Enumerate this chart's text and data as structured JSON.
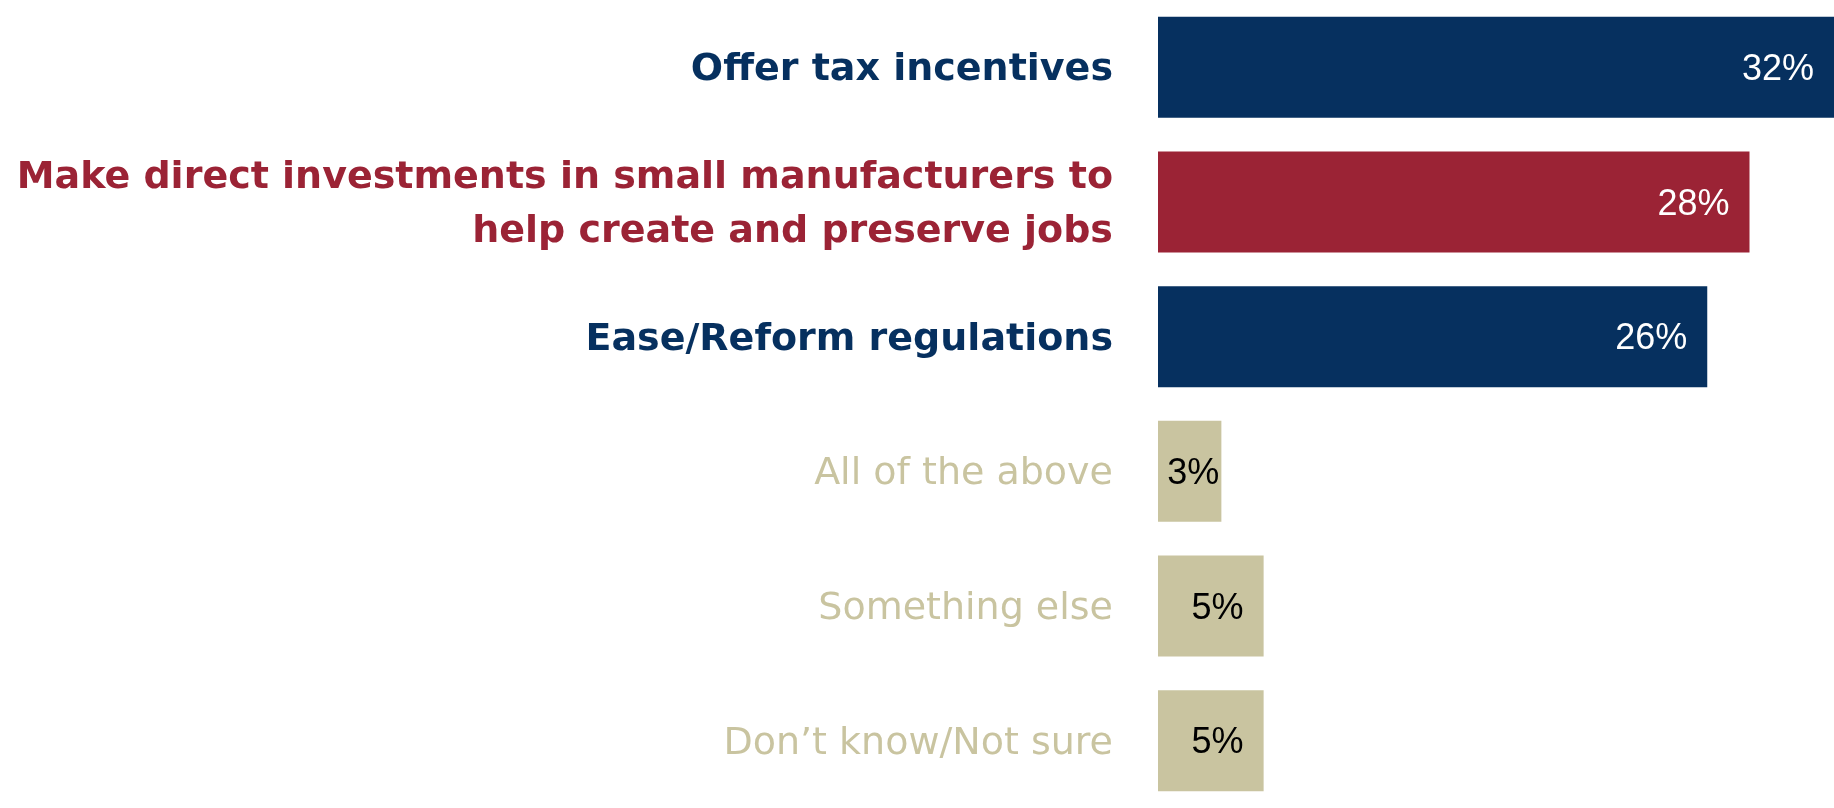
{
  "chart_data": {
    "type": "bar",
    "orientation": "horizontal",
    "categories": [
      "Offer tax incentives",
      "Make direct investments in small manufacturers to help create and preserve jobs",
      "Ease/Reform regulations",
      "All of the above",
      "Something else",
      "Don’t know/Not sure"
    ],
    "values": [
      32,
      28,
      26,
      3,
      5,
      5
    ],
    "colors": [
      "#06305f",
      "#9b2335",
      "#06305f",
      "#c9c4a0",
      "#c9c4a0",
      "#c9c4a0"
    ],
    "data_labels": true,
    "value_labels": [
      "32%",
      "28%",
      "26%",
      "3%",
      "5%",
      "5%"
    ]
  }
}
